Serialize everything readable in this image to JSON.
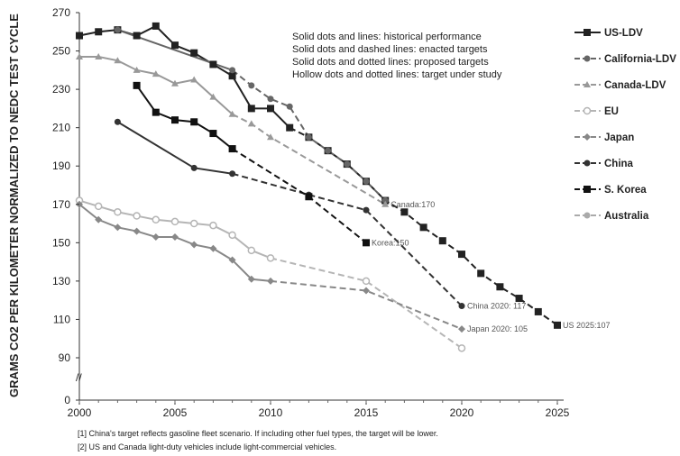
{
  "chart_data": {
    "type": "line",
    "ylabel": "GRAMS CO2 PER KILOMETER NORMALIZED TO NEDC TEST CYCLE",
    "xlim": [
      2000,
      2025
    ],
    "ylim": [
      0,
      270
    ],
    "y_break": [
      0,
      90
    ],
    "x_ticks": [
      2000,
      2005,
      2010,
      2015,
      2020,
      2025
    ],
    "y_ticks": [
      0,
      90,
      110,
      130,
      150,
      170,
      190,
      210,
      230,
      250,
      270
    ],
    "notes": [
      "Solid dots and lines: historical performance",
      "Solid dots and dashed lines: enacted targets",
      "Solid dots and dotted lines: proposed targets",
      "Hollow dots and dotted lines: target under study"
    ],
    "legend_position": "right",
    "series": [
      {
        "name": "US-LDV",
        "color": "#222222",
        "marker": "square-x",
        "historical": [
          [
            2000,
            258
          ],
          [
            2001,
            260
          ],
          [
            2002,
            261
          ],
          [
            2003,
            258
          ],
          [
            2004,
            263
          ],
          [
            2005,
            253
          ],
          [
            2006,
            249
          ],
          [
            2007,
            243
          ],
          [
            2008,
            237
          ],
          [
            2009,
            220
          ],
          [
            2010,
            220
          ],
          [
            2011,
            210
          ]
        ],
        "targets": [
          [
            2012,
            205
          ],
          [
            2013,
            198
          ],
          [
            2014,
            191
          ],
          [
            2015,
            182
          ],
          [
            2016,
            172
          ],
          [
            2017,
            166
          ],
          [
            2018,
            158
          ],
          [
            2019,
            151
          ],
          [
            2020,
            144
          ],
          [
            2021,
            134
          ],
          [
            2022,
            127
          ],
          [
            2023,
            121
          ],
          [
            2024,
            114
          ],
          [
            2025,
            107
          ]
        ]
      },
      {
        "name": "California-LDV",
        "color": "#666666",
        "marker": "circle",
        "historical": [
          [
            2002,
            261
          ],
          [
            2008,
            240
          ]
        ],
        "targets": [
          [
            2009,
            232
          ],
          [
            2010,
            225
          ],
          [
            2011,
            221
          ],
          [
            2012,
            205
          ],
          [
            2013,
            198
          ],
          [
            2014,
            191
          ],
          [
            2015,
            182
          ],
          [
            2016,
            172
          ]
        ]
      },
      {
        "name": "Canada-LDV",
        "color": "#999999",
        "marker": "triangle",
        "historical": [
          [
            2000,
            247
          ],
          [
            2001,
            247
          ],
          [
            2002,
            245
          ],
          [
            2003,
            240
          ],
          [
            2004,
            238
          ],
          [
            2005,
            233
          ],
          [
            2006,
            235
          ],
          [
            2007,
            226
          ],
          [
            2008,
            217
          ]
        ],
        "targets": [
          [
            2009,
            212
          ],
          [
            2010,
            205
          ],
          [
            2016,
            170
          ]
        ]
      },
      {
        "name": "EU",
        "color": "#b5b5b5",
        "marker": "circle-open",
        "historical": [
          [
            2000,
            172
          ],
          [
            2001,
            169
          ],
          [
            2002,
            166
          ],
          [
            2003,
            164
          ],
          [
            2004,
            162
          ],
          [
            2005,
            161
          ],
          [
            2006,
            160
          ],
          [
            2007,
            159
          ],
          [
            2008,
            154
          ],
          [
            2009,
            146
          ],
          [
            2010,
            142
          ]
        ],
        "targets": [
          [
            2015,
            130
          ],
          [
            2020,
            95
          ]
        ]
      },
      {
        "name": "Japan",
        "color": "#888888",
        "marker": "diamond",
        "historical": [
          [
            2000,
            170
          ],
          [
            2001,
            162
          ],
          [
            2002,
            158
          ],
          [
            2003,
            156
          ],
          [
            2004,
            153
          ],
          [
            2005,
            153
          ],
          [
            2006,
            149
          ],
          [
            2007,
            147
          ],
          [
            2008,
            141
          ],
          [
            2009,
            131
          ],
          [
            2010,
            130
          ]
        ],
        "targets": [
          [
            2015,
            125
          ],
          [
            2020,
            105
          ]
        ]
      },
      {
        "name": "China",
        "color": "#333333",
        "marker": "circle",
        "historical": [
          [
            2002,
            213
          ],
          [
            2006,
            189
          ],
          [
            2008,
            186
          ]
        ],
        "targets": [
          [
            2012,
            175
          ],
          [
            2015,
            167
          ],
          [
            2020,
            117
          ]
        ]
      },
      {
        "name": "S. Korea",
        "color": "#111111",
        "marker": "square",
        "historical": [
          [
            2003,
            232
          ],
          [
            2004,
            218
          ],
          [
            2005,
            214
          ],
          [
            2006,
            213
          ],
          [
            2007,
            207
          ],
          [
            2008,
            199
          ]
        ],
        "targets": [
          [
            2012,
            174
          ],
          [
            2015,
            150
          ]
        ]
      },
      {
        "name": "Australia",
        "color": "#aaaaaa",
        "marker": "circle",
        "historical": [],
        "targets": []
      }
    ],
    "annotations": [
      {
        "text": "Canada:170",
        "x": 2016,
        "y": 170
      },
      {
        "text": "Korea:150",
        "x": 2015,
        "y": 150
      },
      {
        "text": "China 2020: 117",
        "x": 2020,
        "y": 117
      },
      {
        "text": "Japan 2020: 105",
        "x": 2020,
        "y": 105
      },
      {
        "text": "US 2025:107",
        "x": 2025,
        "y": 107
      }
    ],
    "footnotes": [
      "[1] China's target reflects gasoline fleet scenario. If including other fuel types, the target will be lower.",
      "[2] US and Canada light-duty vehicles include light-commercial vehicles."
    ]
  }
}
